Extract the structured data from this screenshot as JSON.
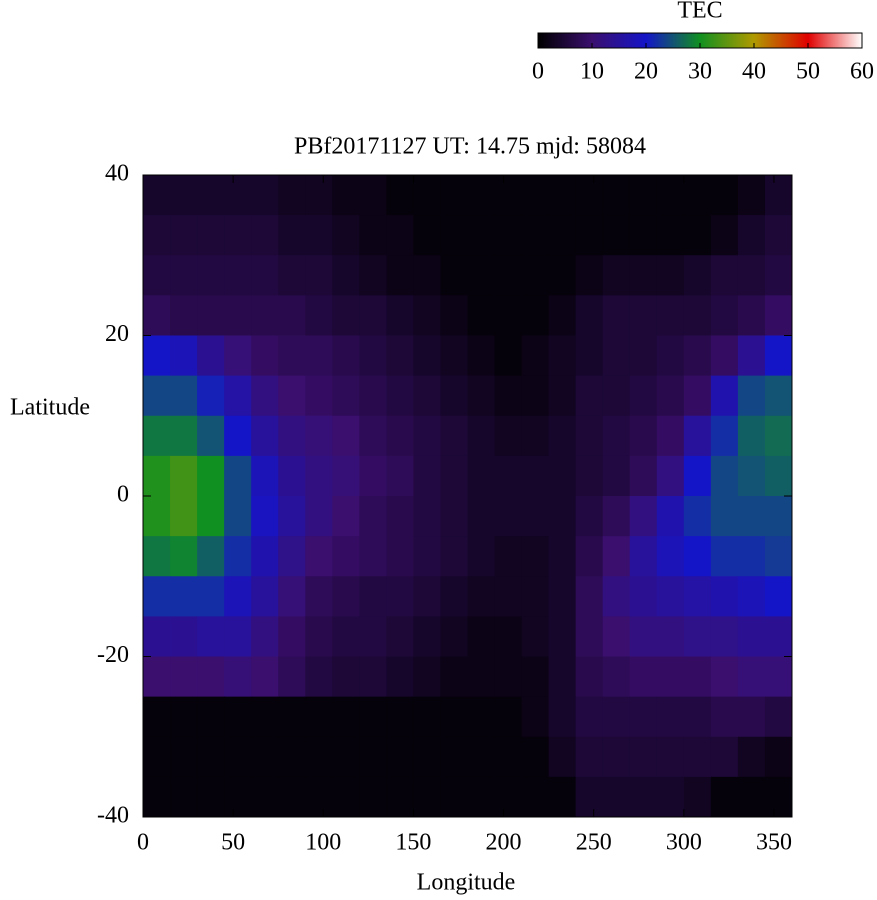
{
  "chart_data": {
    "type": "heatmap",
    "title": "PBf20171127  UT: 14.75  mjd: 58084",
    "xlabel": "Longitude",
    "ylabel": "Latitude",
    "colorbar_label": "TEC",
    "xlim": [
      0,
      360
    ],
    "ylim": [
      -40,
      40
    ],
    "xticks": [
      0,
      50,
      100,
      150,
      200,
      250,
      300,
      350
    ],
    "yticks": [
      -40,
      -20,
      0,
      20,
      40
    ],
    "clim": [
      0,
      60
    ],
    "cticks": [
      0,
      10,
      20,
      30,
      40,
      50,
      60
    ],
    "colormap": [
      "#000000",
      "#3a0f6e",
      "#1515c8",
      "#109020",
      "#b09a00",
      "#e00000",
      "#ffffff"
    ],
    "x": [
      7.5,
      22.5,
      37.5,
      52.5,
      67.5,
      82.5,
      97.5,
      112.5,
      127.5,
      142.5,
      157.5,
      172.5,
      187.5,
      202.5,
      217.5,
      232.5,
      247.5,
      262.5,
      277.5,
      292.5,
      307.5,
      322.5,
      337.5,
      352.5
    ],
    "y": [
      37.5,
      32.5,
      27.5,
      22.5,
      17.5,
      12.5,
      7.5,
      2.5,
      -2.5,
      -7.5,
      -12.5,
      -17.5,
      -22.5,
      -27.5,
      -32.5,
      -37.5
    ],
    "z": [
      [
        4,
        4,
        4,
        4,
        4,
        3,
        3,
        2,
        2,
        1,
        1,
        1,
        1,
        1,
        1,
        1,
        1,
        1,
        1,
        1,
        1,
        1,
        2,
        4
      ],
      [
        5,
        5,
        5,
        5,
        5,
        4,
        4,
        3,
        2,
        2,
        1,
        1,
        1,
        1,
        1,
        1,
        1,
        1,
        1,
        1,
        1,
        2,
        4,
        5
      ],
      [
        6,
        6,
        6,
        6,
        6,
        5,
        5,
        4,
        3,
        2,
        2,
        1,
        1,
        1,
        1,
        1,
        2,
        3,
        3,
        3,
        4,
        5,
        5,
        6
      ],
      [
        8,
        7,
        7,
        7,
        7,
        7,
        6,
        5,
        5,
        4,
        3,
        2,
        1,
        1,
        1,
        2,
        4,
        5,
        5,
        5,
        5,
        6,
        7,
        9
      ],
      [
        20,
        18,
        14,
        11,
        9,
        8,
        8,
        7,
        6,
        5,
        4,
        3,
        2,
        1,
        2,
        3,
        4,
        5,
        5,
        6,
        7,
        9,
        14,
        20
      ],
      [
        24,
        24,
        21,
        16,
        12,
        10,
        9,
        8,
        7,
        6,
        5,
        4,
        3,
        2,
        2,
        3,
        5,
        5,
        6,
        7,
        9,
        17,
        24,
        25
      ],
      [
        28,
        28,
        25,
        20,
        15,
        12,
        11,
        10,
        8,
        7,
        6,
        5,
        4,
        3,
        3,
        4,
        5,
        6,
        7,
        9,
        15,
        22,
        26,
        27
      ],
      [
        31,
        33,
        30,
        24,
        18,
        14,
        12,
        11,
        9,
        8,
        6,
        5,
        4,
        4,
        4,
        4,
        5,
        6,
        8,
        12,
        20,
        24,
        25,
        26
      ],
      [
        31,
        33,
        30,
        24,
        19,
        15,
        12,
        10,
        8,
        7,
        6,
        5,
        4,
        4,
        4,
        4,
        6,
        8,
        12,
        17,
        22,
        24,
        24,
        24
      ],
      [
        28,
        29,
        26,
        22,
        17,
        13,
        10,
        9,
        8,
        7,
        6,
        5,
        4,
        3,
        3,
        4,
        7,
        10,
        15,
        18,
        20,
        22,
        22,
        23
      ],
      [
        22,
        22,
        22,
        18,
        15,
        11,
        8,
        7,
        6,
        6,
        5,
        4,
        3,
        3,
        3,
        4,
        8,
        12,
        14,
        15,
        16,
        17,
        18,
        20
      ],
      [
        14,
        14,
        15,
        15,
        12,
        9,
        7,
        6,
        6,
        5,
        4,
        3,
        2,
        2,
        3,
        4,
        8,
        10,
        12,
        12,
        13,
        13,
        14,
        14
      ],
      [
        10,
        10,
        10,
        11,
        10,
        8,
        6,
        5,
        5,
        4,
        3,
        2,
        2,
        2,
        2,
        4,
        7,
        8,
        9,
        9,
        9,
        10,
        11,
        11
      ],
      [
        1,
        1,
        1,
        1,
        1,
        1,
        1,
        1,
        1,
        1,
        1,
        1,
        1,
        1,
        2,
        4,
        6,
        6,
        6,
        6,
        6,
        7,
        7,
        6
      ],
      [
        1,
        1,
        1,
        1,
        1,
        1,
        1,
        1,
        1,
        1,
        1,
        1,
        1,
        1,
        1,
        3,
        5,
        5,
        5,
        5,
        5,
        5,
        3,
        2
      ],
      [
        1,
        1,
        1,
        1,
        1,
        1,
        1,
        1,
        1,
        1,
        1,
        1,
        1,
        1,
        1,
        1,
        4,
        4,
        4,
        4,
        3,
        1,
        1,
        1
      ]
    ]
  }
}
